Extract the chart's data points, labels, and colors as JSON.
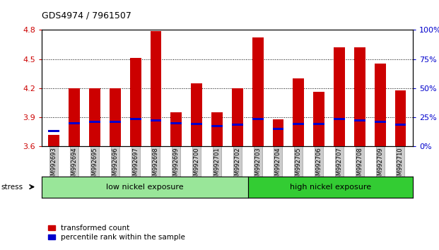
{
  "title": "GDS4974 / 7961507",
  "samples": [
    "GSM992693",
    "GSM992694",
    "GSM992695",
    "GSM992696",
    "GSM992697",
    "GSM992698",
    "GSM992699",
    "GSM992700",
    "GSM992701",
    "GSM992702",
    "GSM992703",
    "GSM992704",
    "GSM992705",
    "GSM992706",
    "GSM992707",
    "GSM992708",
    "GSM992709",
    "GSM992710"
  ],
  "red_values": [
    3.72,
    4.2,
    4.2,
    4.2,
    4.51,
    4.79,
    3.95,
    4.25,
    3.95,
    4.2,
    4.72,
    3.88,
    4.3,
    4.16,
    4.62,
    4.62,
    4.45,
    4.18
  ],
  "blue_values": [
    3.76,
    3.84,
    3.85,
    3.85,
    3.88,
    3.87,
    3.84,
    3.83,
    3.81,
    3.82,
    3.88,
    3.78,
    3.83,
    3.83,
    3.88,
    3.87,
    3.85,
    3.82
  ],
  "ylim_left": [
    3.6,
    4.8
  ],
  "ylim_right": [
    0,
    100
  ],
  "yticks_left": [
    3.6,
    3.9,
    4.2,
    4.5,
    4.8
  ],
  "yticks_right": [
    0,
    25,
    50,
    75,
    100
  ],
  "ytick_labels_right": [
    "0%",
    "25%",
    "50%",
    "75%",
    "100%"
  ],
  "bar_color": "#cc0000",
  "blue_color": "#0000cc",
  "low_group": "low nickel exposure",
  "high_group": "high nickel exposure",
  "low_count": 10,
  "high_count": 8,
  "stress_label": "stress",
  "legend_red": "transformed count",
  "legend_blue": "percentile rank within the sample",
  "tick_label_color_left": "#cc0000",
  "tick_label_color_right": "#0000cc",
  "bar_width": 0.55,
  "base_value": 3.6,
  "blue_bar_height": 0.022,
  "low_color": "#99e699",
  "high_color": "#33cc33",
  "group_box_color": "#000000"
}
